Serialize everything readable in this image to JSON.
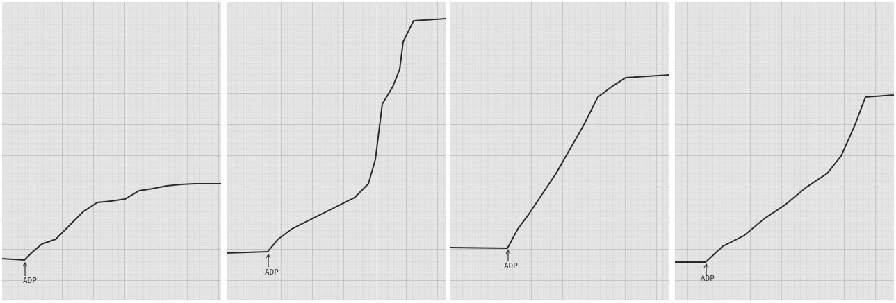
{
  "panels": [
    {
      "annotation": "ADP"
    },
    {
      "annotation": "ADP"
    },
    {
      "annotation": "ADP"
    },
    {
      "annotation": "ADP"
    }
  ]
}
